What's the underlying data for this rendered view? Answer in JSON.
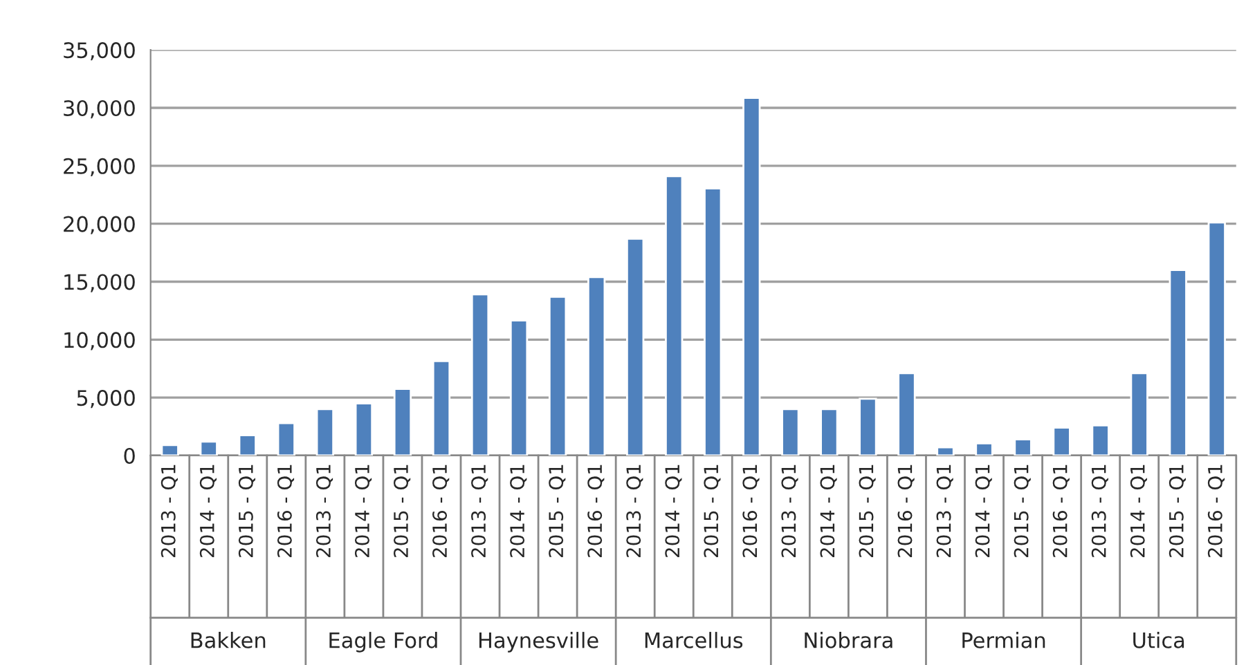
{
  "chart_data": {
    "type": "bar",
    "categories": [
      "2013 - Q1",
      "2014 - Q1",
      "2015 - Q1",
      "2016 - Q1",
      "2013 - Q1",
      "2014 - Q1",
      "2015 - Q1",
      "2016 - Q1",
      "2013 - Q1",
      "2014 - Q1",
      "2015 - Q1",
      "2016 - Q1",
      "2013 - Q1",
      "2014 - Q1",
      "2015 - Q1",
      "2016 - Q1",
      "2013 - Q1",
      "2014 - Q1",
      "2015 - Q1",
      "2016 - Q1",
      "2013 - Q1",
      "2014 - Q1",
      "2015 - Q1",
      "2016 - Q1",
      "2013 - Q1",
      "2014 - Q1",
      "2015 - Q1",
      "2016 - Q1"
    ],
    "values": [
      900,
      1200,
      1750,
      2800,
      4000,
      4500,
      5750,
      8150,
      13900,
      11650,
      13700,
      15400,
      18700,
      24100,
      23050,
      30850,
      4000,
      4000,
      4900,
      7100,
      700,
      1050,
      1400,
      2400,
      2600,
      7100,
      16000,
      20100
    ],
    "color": "#4f81bd",
    "annotations": [
      "Bakken",
      "Eagle Ford",
      "Haynesville",
      "Marcellus",
      "Niobrara",
      "Permian",
      "Utica"
    ],
    "ylim": [
      0,
      35000
    ],
    "yticks": [
      {
        "value": 0,
        "label": "0"
      },
      {
        "value": 5000,
        "label": "5,000"
      },
      {
        "value": 10000,
        "label": "10,000"
      },
      {
        "value": 15000,
        "label": "15,000"
      },
      {
        "value": 20000,
        "label": "20,000"
      },
      {
        "value": 25000,
        "label": "25,000"
      },
      {
        "value": 30000,
        "label": "30,000"
      },
      {
        "value": 35000,
        "label": "35,000"
      }
    ],
    "grid": "y",
    "legend": false
  }
}
